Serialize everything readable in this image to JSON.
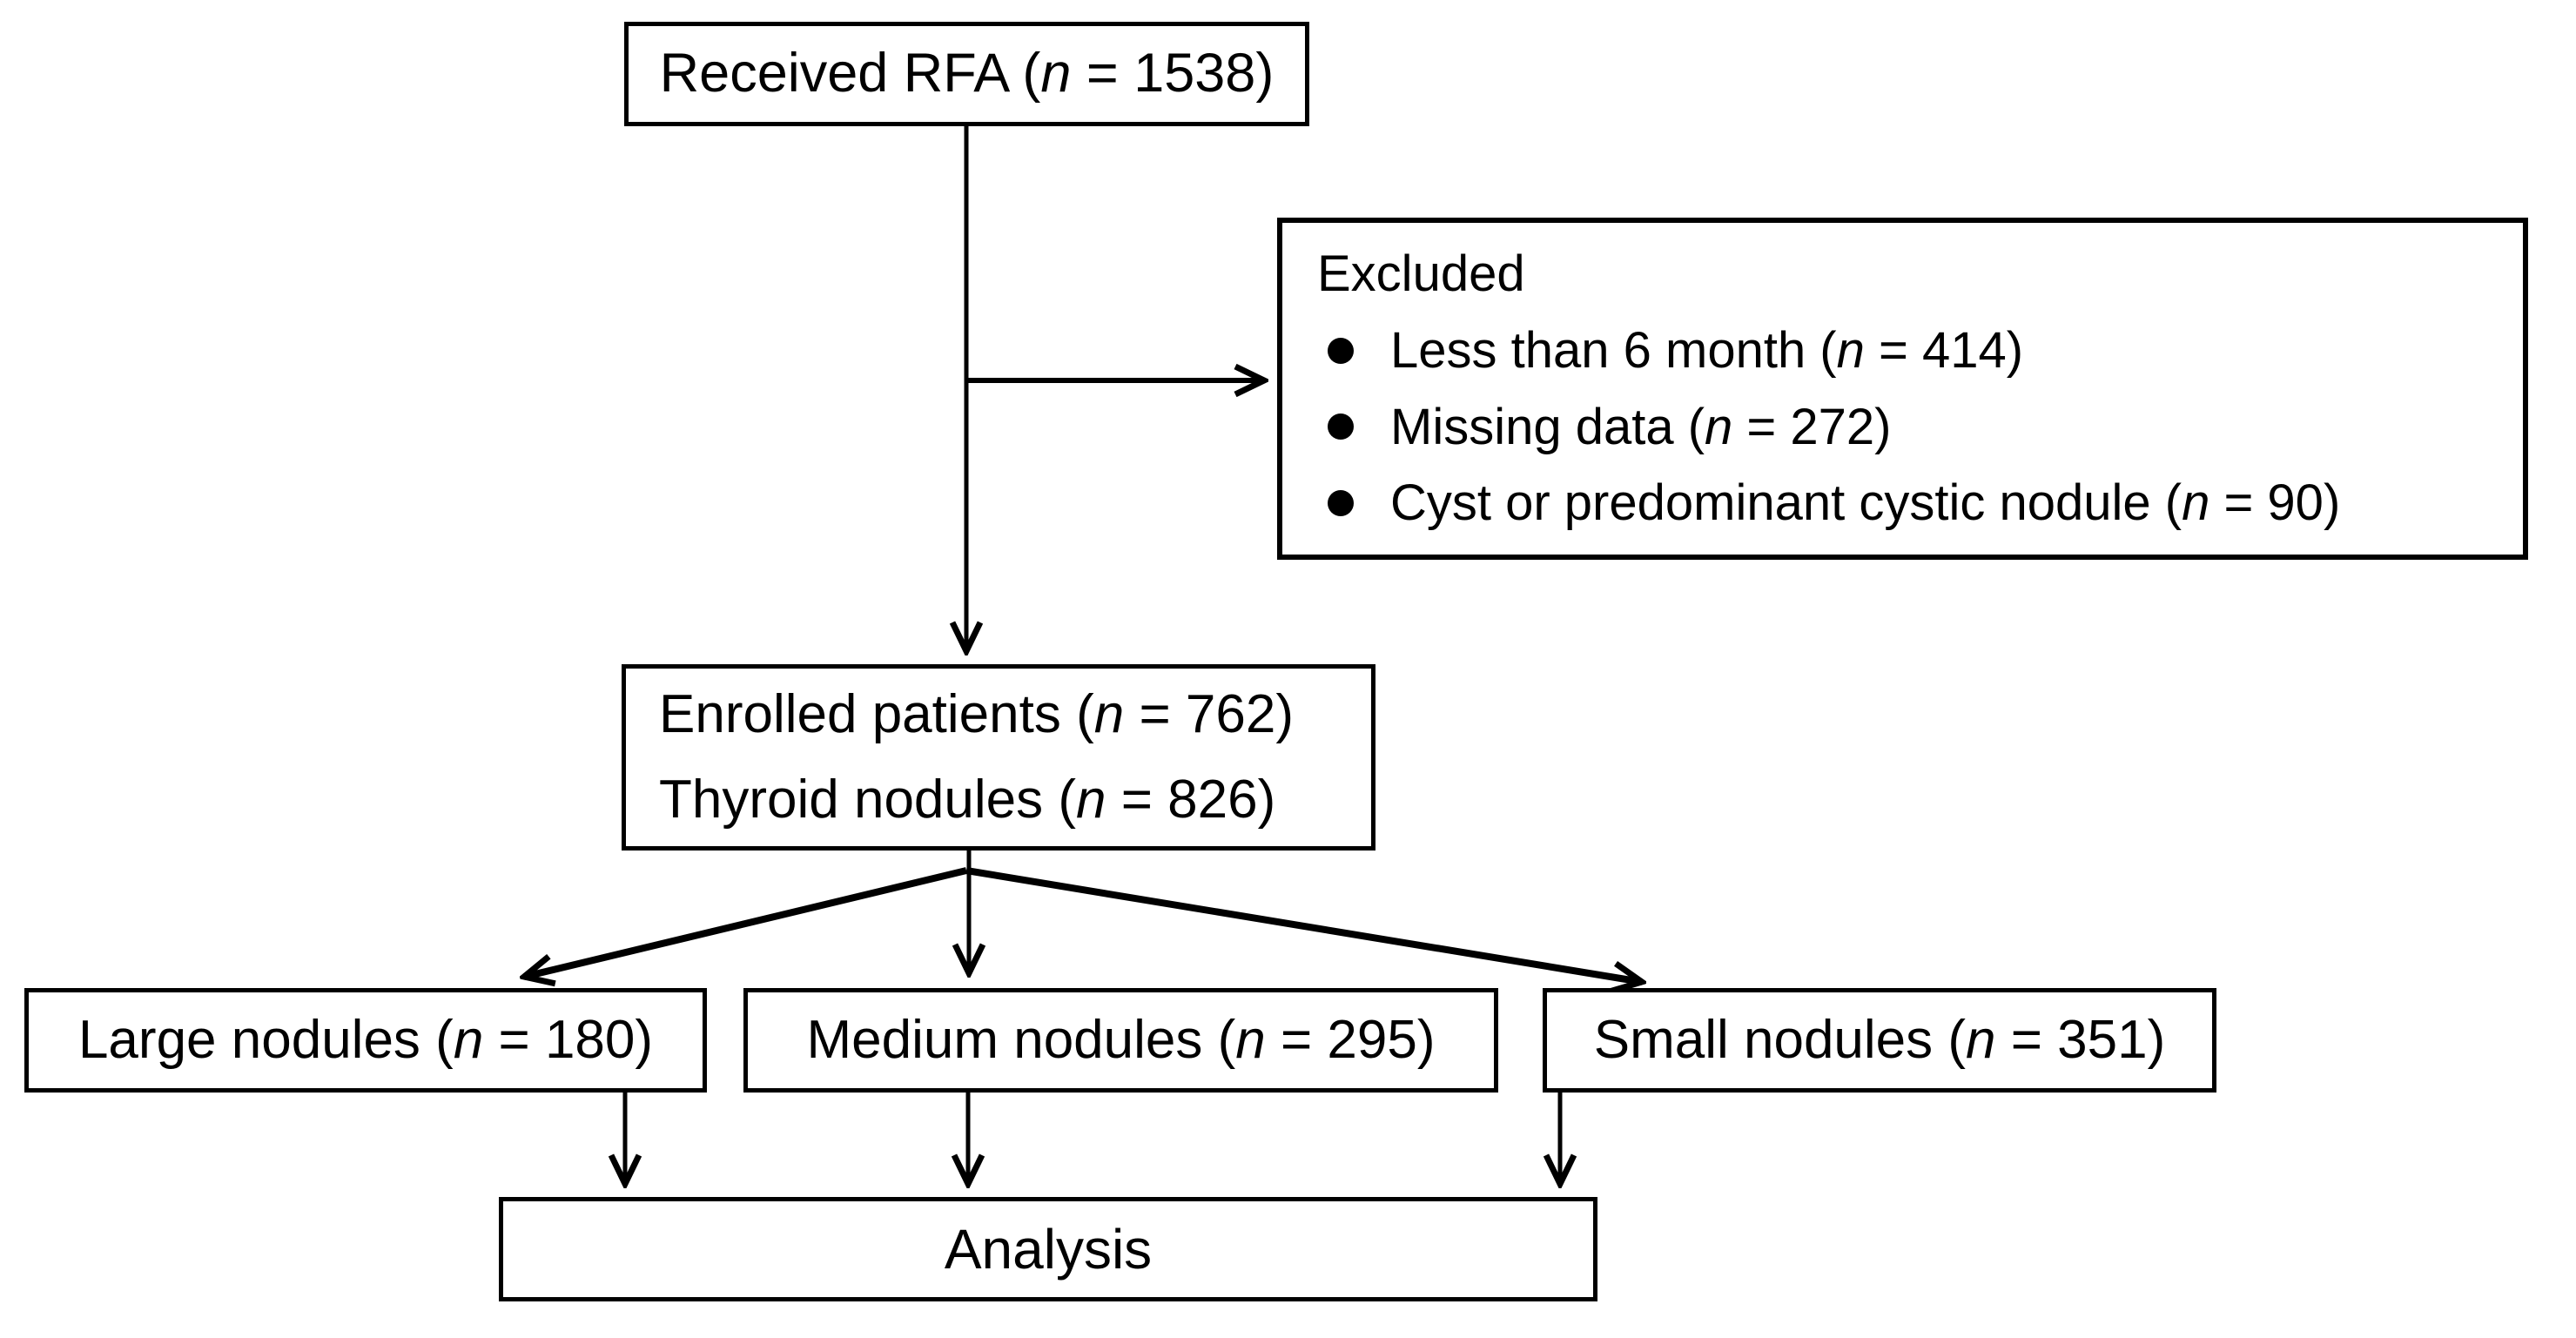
{
  "colors": {
    "ink": "#000000",
    "background": "#ffffff"
  },
  "icons": {
    "bullet": "filled-circle"
  },
  "flowchart": {
    "received": {
      "label": "Received RFA (n = 1538)"
    },
    "excluded": {
      "title": "Excluded",
      "items": [
        "Less than 6 month (n = 414)",
        "Missing data (n = 272)",
        "Cyst or predominant cystic nodule (n = 90)"
      ]
    },
    "enrolled": {
      "lines": [
        "Enrolled patients (n = 762)",
        "Thyroid nodules (n = 826)"
      ]
    },
    "groups": [
      {
        "id": "large",
        "label": "Large nodules (n = 180)"
      },
      {
        "id": "medium",
        "label": "Medium nodules (n = 295)"
      },
      {
        "id": "small",
        "label": "Small nodules (n = 351)"
      }
    ],
    "analysis": {
      "label": "Analysis"
    }
  }
}
